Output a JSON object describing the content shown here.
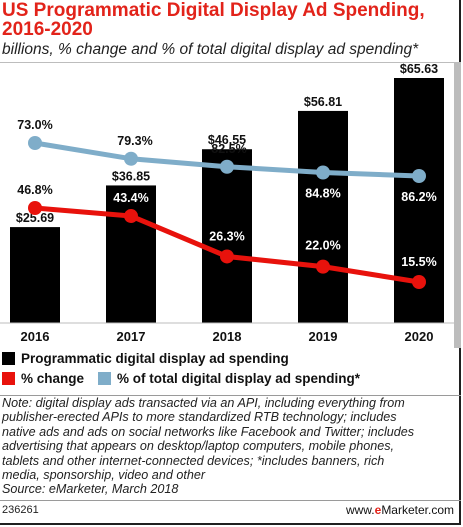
{
  "header": {
    "title_line1": "US Programmatic Digital Display Ad Spending,",
    "title_line2": "2016-2020",
    "subtitle": "billions, % change and % of total digital display ad spending*"
  },
  "colors": {
    "title": "#e2231a",
    "bars": "#000000",
    "change_line": "#e8120c",
    "share_line": "#7fadc9"
  },
  "chart_data": {
    "type": "bar",
    "categories": [
      "2016",
      "2017",
      "2018",
      "2019",
      "2020"
    ],
    "series": [
      {
        "name": "Programmatic digital display ad spending",
        "type": "bar",
        "values": [
          25.69,
          36.85,
          46.55,
          56.81,
          65.63
        ],
        "labels": [
          "$25.69",
          "$36.85",
          "$46.55",
          "$56.81",
          "$65.63"
        ]
      },
      {
        "name": "% change",
        "type": "line",
        "values": [
          46.8,
          43.4,
          26.3,
          22.0,
          15.5
        ],
        "labels": [
          "46.8%",
          "43.4%",
          "26.3%",
          "22.0%",
          "15.5%"
        ]
      },
      {
        "name": "% of total digital display ad spending*",
        "type": "line",
        "values": [
          73.0,
          79.3,
          82.5,
          84.8,
          86.2
        ],
        "labels": [
          "73.0%",
          "79.3%",
          "82.5%",
          "84.8%",
          "86.2%"
        ]
      }
    ]
  },
  "legend": {
    "items": [
      {
        "label": "Programmatic digital display ad spending"
      },
      {
        "label": "% change"
      },
      {
        "label": "% of total digital display ad spending*"
      }
    ]
  },
  "note": {
    "lines": [
      "Note: digital display ads transacted via an API, including everything from",
      "publisher-erected APIs to more standardized RTB technology; includes",
      "native ads and ads on social networks like Facebook and Twitter; includes",
      "advertising that appears on desktop/laptop computers, mobile phones,",
      "tablets and other internet-connected devices; *includes banners, rich",
      "media, sponsorship, video and other",
      "Source: eMarketer, March 2018"
    ]
  },
  "footer": {
    "chart_id": "236261",
    "brand_prefix": "www.",
    "brand_e": "e",
    "brand_suffix": "Marketer.com"
  }
}
